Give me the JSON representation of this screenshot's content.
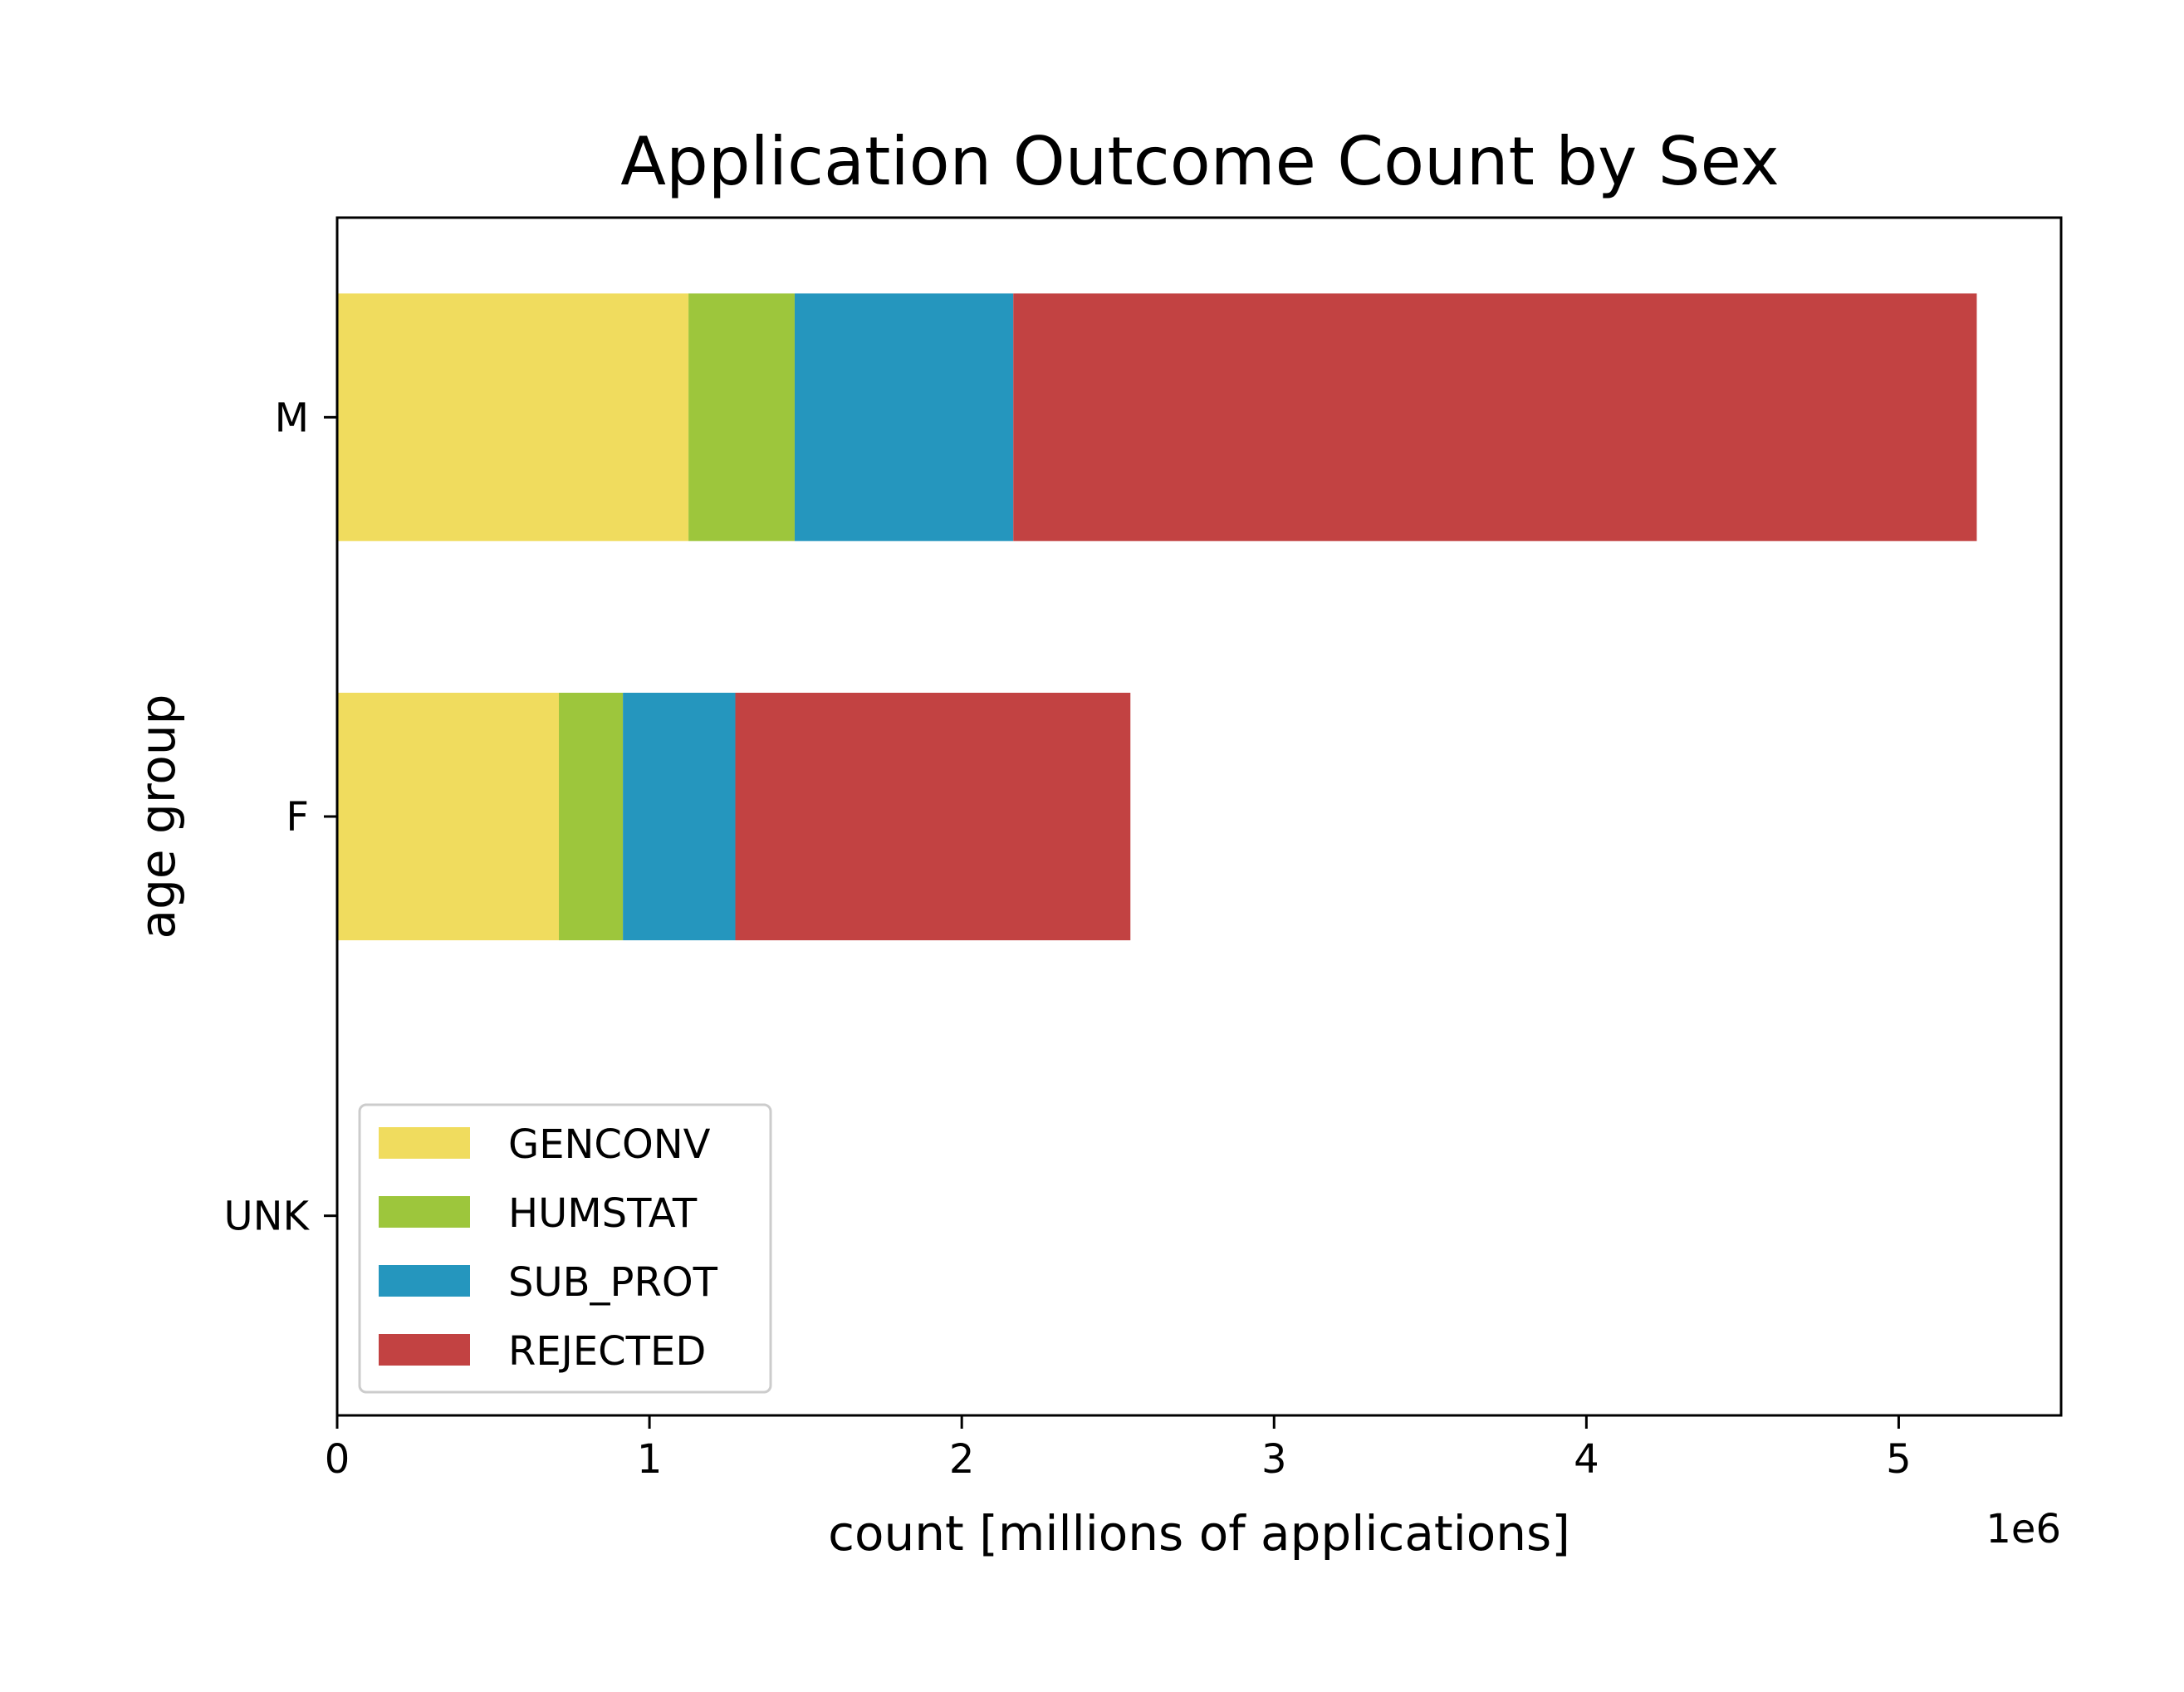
{
  "chart_data": {
    "type": "bar",
    "orientation": "horizontal",
    "stacked": true,
    "title": "Application Outcome Count by Sex",
    "xlabel": "count [millions of applications]",
    "ylabel": "age group",
    "x_offset_text": "1e6",
    "xlim": [
      0,
      5.52
    ],
    "x_ticks": [
      0,
      1,
      2,
      3,
      4,
      5
    ],
    "x_tick_labels": [
      "0",
      "1",
      "2",
      "3",
      "4",
      "5"
    ],
    "categories": [
      "M",
      "F",
      "UNK"
    ],
    "series": [
      {
        "name": "GENCONV",
        "color": "#f0dc5e",
        "values": [
          1.125,
          0.71,
          0
        ]
      },
      {
        "name": "HUMSTAT",
        "color": "#9dc63c",
        "values": [
          0.34,
          0.205,
          0
        ]
      },
      {
        "name": "SUB_PROT",
        "color": "#2596be",
        "values": [
          0.7,
          0.36,
          0
        ]
      },
      {
        "name": "REJECTED",
        "color": "#c24242",
        "values": [
          3.085,
          1.265,
          0
        ]
      }
    ],
    "grid": false,
    "legend_position": "lower-left"
  }
}
